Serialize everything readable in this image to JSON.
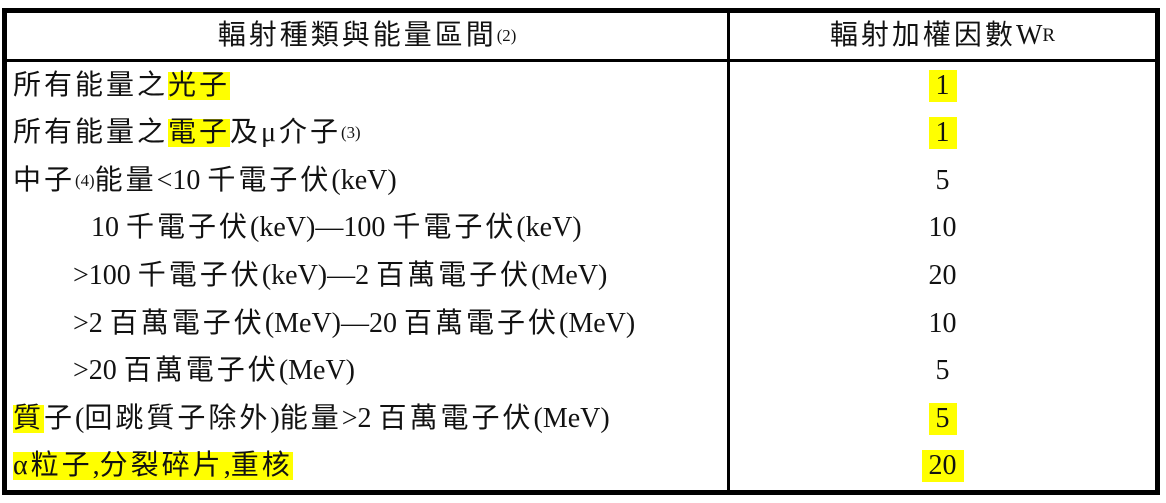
{
  "colors": {
    "background": "#ffffff",
    "border": "#000000",
    "text": "#121212",
    "highlight": "#ffff00"
  },
  "header": {
    "type_column": {
      "label": "輻射種類與能量區間",
      "superscript": "(2)"
    },
    "wr_column": {
      "label": "輻射加權因數 W",
      "subscript": "R"
    }
  },
  "rows": [
    {
      "indent": 6,
      "segments": [
        {
          "text": "所有能量之"
        },
        {
          "text": "光子",
          "highlight": true
        }
      ],
      "value": "1",
      "value_highlight": true
    },
    {
      "indent": 6,
      "segments": [
        {
          "text": "所有能量之"
        },
        {
          "text": "電子",
          "highlight": true
        },
        {
          "text": "及μ介子"
        },
        {
          "text": "(3)",
          "superscript": true
        }
      ],
      "value": "1",
      "value_highlight": true
    },
    {
      "indent": 6,
      "segments": [
        {
          "text": "中子"
        },
        {
          "text": "(4)",
          "superscript": true
        },
        {
          "text": "能量<10 千電子伏(keV)"
        }
      ],
      "value": "5",
      "value_highlight": false
    },
    {
      "indent": 84,
      "segments": [
        {
          "text": "10 千電子伏(keV)—100 千電子伏(keV)"
        }
      ],
      "value": "10",
      "value_highlight": false
    },
    {
      "indent": 66,
      "segments": [
        {
          "text": ">100 千電子伏(keV)—2 百萬電子伏(MeV)"
        }
      ],
      "value": "20",
      "value_highlight": false
    },
    {
      "indent": 66,
      "segments": [
        {
          "text": ">2 百萬電子伏(MeV)—20 百萬電子伏(MeV)"
        }
      ],
      "value": "10",
      "value_highlight": false
    },
    {
      "indent": 66,
      "segments": [
        {
          "text": ">20 百萬電子伏(MeV)"
        }
      ],
      "value": "5",
      "value_highlight": false
    },
    {
      "indent": 6,
      "segments": [
        {
          "text": "質",
          "highlight": true
        },
        {
          "text": "子(回跳質子除外)能量>2 百萬電子伏(MeV)"
        }
      ],
      "value": "5",
      "value_highlight": true
    },
    {
      "indent": 6,
      "segments": [
        {
          "text": "α粒子,分裂碎片,重核",
          "highlight": true
        }
      ],
      "value": "20",
      "value_highlight": true
    }
  ]
}
